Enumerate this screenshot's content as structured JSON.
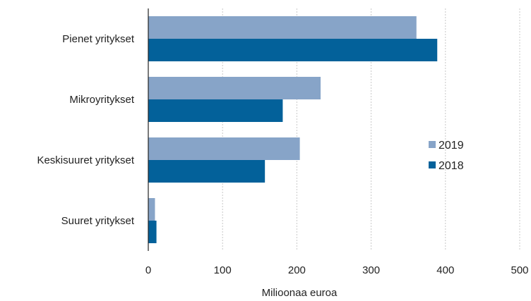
{
  "chart_data": {
    "type": "bar",
    "orientation": "horizontal",
    "categories": [
      "Pienet yritykset",
      "Mikroyritykset",
      "Keskisuuret yritykset",
      "Suuret yritykset"
    ],
    "series": [
      {
        "name": "2019",
        "color": "#87a4c8",
        "values": [
          361,
          232,
          204,
          9
        ]
      },
      {
        "name": "2018",
        "color": "#03619a",
        "values": [
          389,
          181,
          157,
          11
        ]
      }
    ],
    "xlabel": "Milioonaa euroa",
    "ylabel": "",
    "xlim": [
      0,
      500
    ],
    "xticks": [
      "0",
      "100",
      "200",
      "300",
      "400",
      "500"
    ],
    "grid": true,
    "legend_position": "right"
  }
}
